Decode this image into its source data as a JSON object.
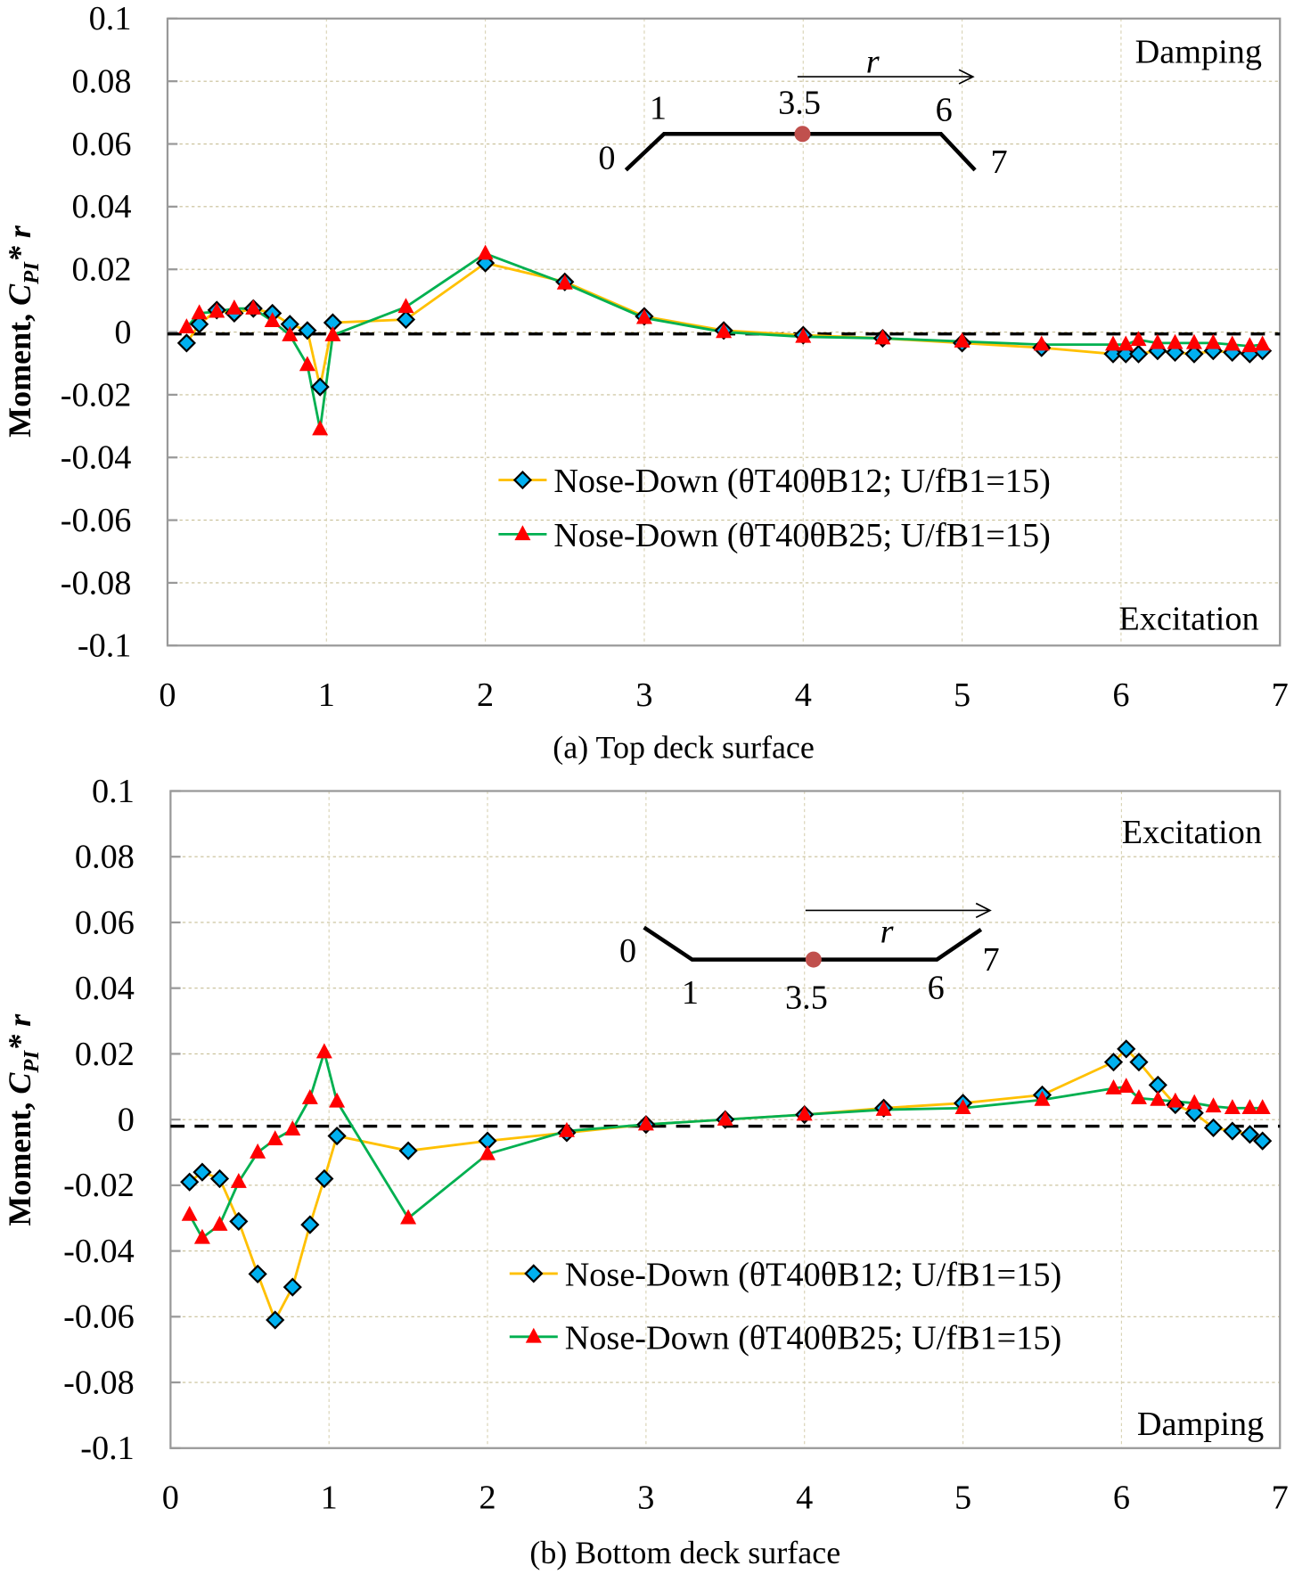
{
  "chart_data": [
    {
      "type": "line",
      "id": "top",
      "caption": "(a)    Top deck surface",
      "ylabel": "Moment, C_PI* r",
      "ylabel_main": "Moment, ",
      "ylabel_c": "C",
      "ylabel_sub": "PI",
      "ylabel_tail": "* r",
      "xlim": [
        0,
        7
      ],
      "ylim": [
        -0.1,
        0.1
      ],
      "xticks": [
        0,
        1,
        2,
        3,
        4,
        5,
        6,
        7
      ],
      "yticks": [
        0.1,
        0.08,
        0.06,
        0.04,
        0.02,
        0,
        -0.02,
        -0.04,
        -0.06,
        -0.08,
        -0.1
      ],
      "ytick_labels": [
        "0.1",
        "0.08",
        "0.06",
        "0.04",
        "0.02",
        "0",
        "-0.02",
        "-0.04",
        "-0.06",
        "-0.08",
        "-0.1"
      ],
      "grid": true,
      "reference_line": -0.0006,
      "annotations": {
        "upper": "Damping",
        "lower": "Excitation"
      },
      "inset": {
        "labels": [
          "0",
          "1",
          "3.5",
          "6",
          "7"
        ],
        "arrow_label": "r"
      },
      "legend_position": "lower-right",
      "x": [
        0.12,
        0.2,
        0.31,
        0.42,
        0.54,
        0.66,
        0.77,
        0.88,
        0.96,
        1.04,
        1.5,
        2,
        2.5,
        3,
        3.5,
        4,
        4.5,
        5,
        5.5,
        5.95,
        6.03,
        6.11,
        6.23,
        6.34,
        6.46,
        6.58,
        6.7,
        6.81,
        6.89
      ],
      "series": [
        {
          "name": "Nose-Down (θT40θB12; U/fB1=15)",
          "marker": "diamond",
          "line_color": "#FFC000",
          "marker_color": "#00B0F0",
          "values": [
            -0.0035,
            0.0025,
            0.007,
            0.006,
            0.0075,
            0.006,
            0.0025,
            0.0005,
            -0.0175,
            0.003,
            0.004,
            0.022,
            0.016,
            0.005,
            0.0005,
            -0.001,
            -0.002,
            -0.0035,
            -0.005,
            -0.007,
            -0.007,
            -0.007,
            -0.006,
            -0.0065,
            -0.007,
            -0.006,
            -0.0065,
            -0.007,
            -0.006
          ]
        },
        {
          "name": "Nose-Down (θT40θB25; U/fB1=15)",
          "marker": "triangle",
          "line_color": "#00B050",
          "marker_color": "#FF0000",
          "values": [
            0.0015,
            0.006,
            0.0065,
            0.0075,
            0.0075,
            0.0035,
            -0.001,
            -0.0105,
            -0.031,
            -0.001,
            0.008,
            0.025,
            0.0155,
            0.0045,
            0,
            -0.0015,
            -0.002,
            -0.003,
            -0.004,
            -0.004,
            -0.004,
            -0.0025,
            -0.0035,
            -0.0035,
            -0.0035,
            -0.0035,
            -0.004,
            -0.0045,
            -0.004
          ]
        }
      ]
    },
    {
      "type": "line",
      "id": "bottom",
      "caption": "(b)    Bottom deck surface",
      "ylabel": "Moment, C_PI* r",
      "ylabel_main": "Moment, ",
      "ylabel_c": "C",
      "ylabel_sub": "PI",
      "ylabel_tail": "* r",
      "xlim": [
        0,
        7
      ],
      "ylim": [
        -0.1,
        0.1
      ],
      "xticks": [
        0,
        1,
        2,
        3,
        4,
        5,
        6,
        7
      ],
      "yticks": [
        0.1,
        0.08,
        0.06,
        0.04,
        0.02,
        0,
        -0.02,
        -0.04,
        -0.06,
        -0.08,
        -0.1
      ],
      "ytick_labels": [
        "0.1",
        "0.08",
        "0.06",
        "0.04",
        "0.02",
        "0",
        "-0.02",
        "-0.04",
        "-0.06",
        "-0.08",
        "-0.1"
      ],
      "grid": true,
      "reference_line": -0.002,
      "annotations": {
        "upper": "Excitation",
        "lower": "Damping"
      },
      "inset": {
        "labels": [
          "0",
          "1",
          "3.5",
          "6",
          "7"
        ],
        "arrow_label": "r"
      },
      "legend_position": "lower-right",
      "x": [
        0.12,
        0.2,
        0.31,
        0.43,
        0.55,
        0.66,
        0.77,
        0.88,
        0.97,
        1.05,
        1.5,
        2,
        2.5,
        3,
        3.5,
        4,
        4.5,
        5,
        5.5,
        5.95,
        6.03,
        6.11,
        6.23,
        6.34,
        6.46,
        6.58,
        6.7,
        6.81,
        6.89
      ],
      "series": [
        {
          "name": "Nose-Down (θT40θB12; U/fB1=15)",
          "marker": "diamond",
          "line_color": "#FFC000",
          "marker_color": "#00B0F0",
          "values": [
            -0.019,
            -0.016,
            -0.018,
            -0.031,
            -0.047,
            -0.061,
            -0.051,
            -0.032,
            -0.018,
            -0.005,
            -0.0095,
            -0.0065,
            -0.004,
            -0.0015,
            0,
            0.0015,
            0.0035,
            0.005,
            0.0075,
            0.0175,
            0.0215,
            0.0175,
            0.0105,
            0.0045,
            0.002,
            -0.0025,
            -0.0035,
            -0.0045,
            -0.0065
          ]
        },
        {
          "name": "Nose-Down (θT40θB25; U/fB1=15)",
          "marker": "triangle",
          "line_color": "#00B050",
          "marker_color": "#FF0000",
          "values": [
            -0.029,
            -0.036,
            -0.032,
            -0.019,
            -0.01,
            -0.006,
            -0.003,
            0.0065,
            0.0205,
            0.0055,
            -0.03,
            -0.0105,
            -0.0035,
            -0.0015,
            0,
            0.0015,
            0.003,
            0.0035,
            0.006,
            0.0095,
            0.01,
            0.0065,
            0.006,
            0.0055,
            0.005,
            0.004,
            0.0035,
            0.0035,
            0.0035
          ]
        }
      ]
    }
  ]
}
